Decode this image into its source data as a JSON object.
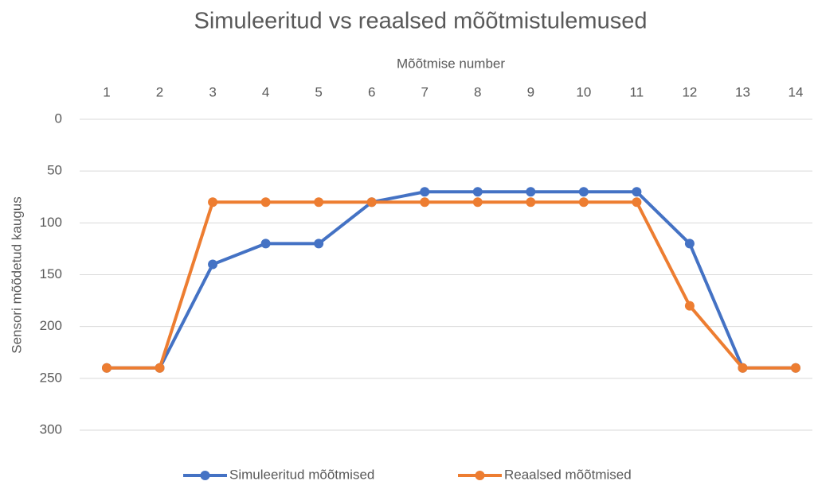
{
  "chart_data": {
    "type": "line",
    "title": "Simuleeritud vs reaalsed mõõtmistulemused",
    "x_label": "Mõõtmise number",
    "y_label": "Sensori mõõdetud kaugus",
    "categories": [
      1,
      2,
      3,
      4,
      5,
      6,
      7,
      8,
      9,
      10,
      11,
      12,
      13,
      14
    ],
    "series": [
      {
        "name": "Simuleeritud mõõtmised",
        "color": "#4472c4",
        "values": [
          240,
          240,
          140,
          120,
          120,
          80,
          70,
          70,
          70,
          70,
          70,
          120,
          240,
          240
        ]
      },
      {
        "name": "Reaalsed mõõtmised",
        "color": "#ed7d31",
        "values": [
          240,
          240,
          80,
          80,
          80,
          80,
          80,
          80,
          80,
          80,
          80,
          180,
          240,
          240
        ]
      }
    ],
    "ylim": [
      0,
      300
    ],
    "yticks": [
      0,
      50,
      100,
      150,
      200,
      250,
      300
    ],
    "y_inverted": true,
    "x_axis_position": "top",
    "grid": true,
    "legend": "bottom"
  }
}
